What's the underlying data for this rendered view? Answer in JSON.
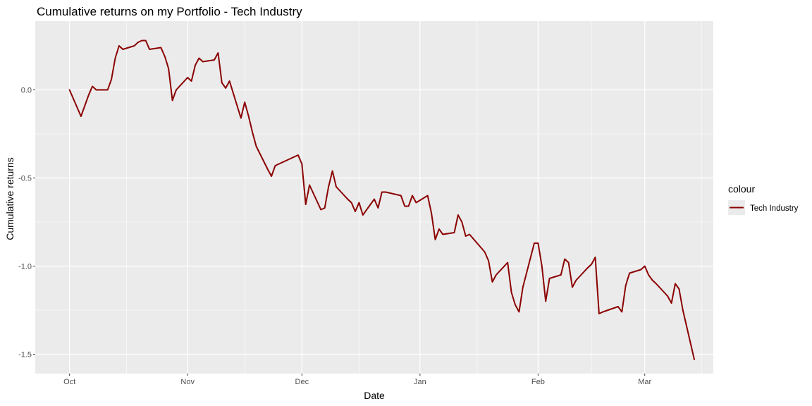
{
  "chart_data": {
    "type": "line",
    "title": "Cumulative returns on my Portfolio - Tech Industry",
    "xlabel": "Date",
    "ylabel": "Cumulative returns",
    "x_ticks": [
      "Oct",
      "Nov",
      "Dec",
      "Jan",
      "Feb",
      "Mar"
    ],
    "y_ticks": [
      "0.0",
      "-0.5",
      "-1.0",
      "-1.5"
    ],
    "ylim": [
      -1.61,
      0.39
    ],
    "grid": true,
    "legend": {
      "title": "colour",
      "position": "right"
    },
    "series": [
      {
        "name": "Tech Industry",
        "color": "#8b0000",
        "x": [
          "2021-10-01",
          "2021-10-04",
          "2021-10-05",
          "2021-10-06",
          "2021-10-07",
          "2021-10-08",
          "2021-10-11",
          "2021-10-12",
          "2021-10-13",
          "2021-10-14",
          "2021-10-15",
          "2021-10-18",
          "2021-10-19",
          "2021-10-20",
          "2021-10-21",
          "2021-10-22",
          "2021-10-25",
          "2021-10-26",
          "2021-10-27",
          "2021-10-28",
          "2021-10-29",
          "2021-11-01",
          "2021-11-02",
          "2021-11-03",
          "2021-11-04",
          "2021-11-05",
          "2021-11-08",
          "2021-11-09",
          "2021-11-10",
          "2021-11-11",
          "2021-11-12",
          "2021-11-15",
          "2021-11-16",
          "2021-11-17",
          "2021-11-18",
          "2021-11-19",
          "2021-11-22",
          "2021-11-23",
          "2021-11-24",
          "2021-11-26",
          "2021-11-29",
          "2021-11-30",
          "2021-12-01",
          "2021-12-02",
          "2021-12-03",
          "2021-12-06",
          "2021-12-07",
          "2021-12-08",
          "2021-12-09",
          "2021-12-10",
          "2021-12-13",
          "2021-12-14",
          "2021-12-15",
          "2021-12-16",
          "2021-12-17",
          "2021-12-20",
          "2021-12-21",
          "2021-12-22",
          "2021-12-23",
          "2021-12-27",
          "2021-12-28",
          "2021-12-29",
          "2021-12-30",
          "2021-12-31",
          "2022-01-03",
          "2022-01-04",
          "2022-01-05",
          "2022-01-06",
          "2022-01-07",
          "2022-01-10",
          "2022-01-11",
          "2022-01-12",
          "2022-01-13",
          "2022-01-14",
          "2022-01-18",
          "2022-01-19",
          "2022-01-20",
          "2022-01-21",
          "2022-01-24",
          "2022-01-25",
          "2022-01-26",
          "2022-01-27",
          "2022-01-28",
          "2022-01-31",
          "2022-02-01",
          "2022-02-02",
          "2022-02-03",
          "2022-02-04",
          "2022-02-07",
          "2022-02-08",
          "2022-02-09",
          "2022-02-10",
          "2022-02-11",
          "2022-02-14",
          "2022-02-15",
          "2022-02-16",
          "2022-02-17",
          "2022-02-18",
          "2022-02-22",
          "2022-02-23",
          "2022-02-24",
          "2022-02-25",
          "2022-02-28",
          "2022-03-01",
          "2022-03-02",
          "2022-03-03",
          "2022-03-04",
          "2022-03-07",
          "2022-03-08",
          "2022-03-09",
          "2022-03-10",
          "2022-03-11",
          "2022-03-14"
        ],
        "y": [
          0.0,
          -0.15,
          -0.09,
          -0.03,
          0.02,
          0.0,
          0.0,
          0.06,
          0.18,
          0.25,
          0.23,
          0.25,
          0.27,
          0.28,
          0.28,
          0.23,
          0.24,
          0.19,
          0.12,
          -0.06,
          0.0,
          0.07,
          0.05,
          0.14,
          0.18,
          0.16,
          0.17,
          0.21,
          0.04,
          0.01,
          0.05,
          -0.16,
          -0.07,
          -0.15,
          -0.24,
          -0.32,
          -0.45,
          -0.49,
          -0.43,
          -0.41,
          -0.38,
          -0.37,
          -0.42,
          -0.65,
          -0.54,
          -0.68,
          -0.67,
          -0.55,
          -0.46,
          -0.55,
          -0.62,
          -0.64,
          -0.69,
          -0.64,
          -0.71,
          -0.62,
          -0.67,
          -0.58,
          -0.58,
          -0.6,
          -0.66,
          -0.66,
          -0.6,
          -0.64,
          -0.6,
          -0.7,
          -0.85,
          -0.79,
          -0.82,
          -0.81,
          -0.71,
          -0.75,
          -0.83,
          -0.82,
          -0.92,
          -0.97,
          -1.09,
          -1.05,
          -0.98,
          -1.15,
          -1.22,
          -1.26,
          -1.12,
          -0.87,
          -0.87,
          -1.0,
          -1.2,
          -1.07,
          -1.05,
          -0.96,
          -0.98,
          -1.12,
          -1.08,
          -1.01,
          -0.99,
          -0.95,
          -1.27,
          -1.26,
          -1.23,
          -1.26,
          -1.11,
          -1.04,
          -1.02,
          -1.0,
          -1.05,
          -1.08,
          -1.1,
          -1.17,
          -1.21,
          -1.1,
          -1.13,
          -1.25,
          -1.53
        ]
      }
    ]
  }
}
